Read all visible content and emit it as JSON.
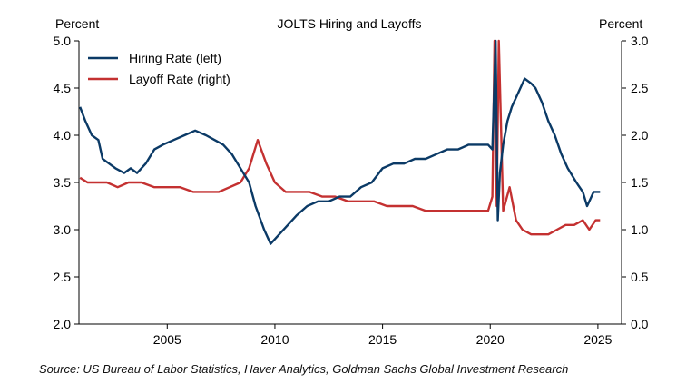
{
  "chart_data": {
    "type": "line",
    "title": "JOLTS Hiring and Layoffs",
    "left_axis_label": "Percent",
    "right_axis_label": "Percent",
    "x_ticks": [
      2005,
      2010,
      2015,
      2020,
      2025
    ],
    "xlim": [
      2000.9,
      2026.1
    ],
    "left_ylim": [
      2.0,
      5.0
    ],
    "right_ylim": [
      0.0,
      3.0
    ],
    "left_ticks": [
      "2.0",
      "2.5",
      "3.0",
      "3.5",
      "4.0",
      "4.5",
      "5.0"
    ],
    "right_ticks": [
      "0.0",
      "0.5",
      "1.0",
      "1.5",
      "2.0",
      "2.5",
      "3.0"
    ],
    "legend_position": "top-left",
    "series": [
      {
        "name": "Hiring Rate (left)",
        "axis": "left",
        "color": "#0b3a66",
        "x": [
          2000.95,
          2001.2,
          2001.5,
          2001.8,
          2002.0,
          2002.3,
          2002.6,
          2003.0,
          2003.3,
          2003.6,
          2004.0,
          2004.4,
          2004.8,
          2005.3,
          2005.8,
          2006.3,
          2006.8,
          2007.2,
          2007.6,
          2008.0,
          2008.4,
          2008.8,
          2009.1,
          2009.5,
          2009.8,
          2010.2,
          2010.6,
          2011.0,
          2011.5,
          2012.0,
          2012.5,
          2013.0,
          2013.5,
          2014.0,
          2014.5,
          2015.0,
          2015.5,
          2016.0,
          2016.5,
          2017.0,
          2017.5,
          2018.0,
          2018.5,
          2019.0,
          2019.5,
          2019.9,
          2020.1,
          2020.25,
          2020.35,
          2020.45,
          2020.6,
          2020.8,
          2021.0,
          2021.3,
          2021.6,
          2021.9,
          2022.1,
          2022.4,
          2022.7,
          2023.0,
          2023.3,
          2023.6,
          2024.0,
          2024.3,
          2024.5,
          2024.8,
          2025.1
        ],
        "values": [
          4.3,
          4.15,
          4.0,
          3.95,
          3.75,
          3.7,
          3.65,
          3.6,
          3.65,
          3.6,
          3.7,
          3.85,
          3.9,
          3.95,
          4.0,
          4.05,
          4.0,
          3.95,
          3.9,
          3.8,
          3.65,
          3.5,
          3.25,
          3.0,
          2.85,
          2.95,
          3.05,
          3.15,
          3.25,
          3.3,
          3.3,
          3.35,
          3.35,
          3.45,
          3.5,
          3.65,
          3.7,
          3.7,
          3.75,
          3.75,
          3.8,
          3.85,
          3.85,
          3.9,
          3.9,
          3.9,
          3.85,
          5.0,
          3.1,
          3.6,
          3.9,
          4.15,
          4.3,
          4.45,
          4.6,
          4.55,
          4.5,
          4.35,
          4.15,
          4.0,
          3.8,
          3.65,
          3.5,
          3.4,
          3.25,
          3.4,
          3.4
        ]
      },
      {
        "name": "Layoff Rate (right)",
        "axis": "right",
        "color": "#c43131",
        "x": [
          2000.95,
          2001.3,
          2001.7,
          2002.2,
          2002.7,
          2003.2,
          2003.8,
          2004.4,
          2005.0,
          2005.6,
          2006.2,
          2006.8,
          2007.4,
          2007.9,
          2008.4,
          2008.8,
          2009.2,
          2009.6,
          2010.0,
          2010.5,
          2011.0,
          2011.6,
          2012.2,
          2012.8,
          2013.4,
          2014.0,
          2014.6,
          2015.2,
          2015.8,
          2016.4,
          2017.0,
          2017.6,
          2018.2,
          2018.8,
          2019.4,
          2019.9,
          2020.1,
          2020.2,
          2020.3,
          2020.4,
          2020.6,
          2020.9,
          2021.2,
          2021.5,
          2021.9,
          2022.3,
          2022.7,
          2023.1,
          2023.5,
          2023.9,
          2024.3,
          2024.6,
          2024.9,
          2025.1
        ],
        "values": [
          1.55,
          1.5,
          1.5,
          1.5,
          1.45,
          1.5,
          1.5,
          1.45,
          1.45,
          1.45,
          1.4,
          1.4,
          1.4,
          1.45,
          1.5,
          1.65,
          1.95,
          1.7,
          1.5,
          1.4,
          1.4,
          1.4,
          1.35,
          1.35,
          1.3,
          1.3,
          1.3,
          1.25,
          1.25,
          1.25,
          1.2,
          1.2,
          1.2,
          1.2,
          1.2,
          1.2,
          1.35,
          3.0,
          1.25,
          3.0,
          1.2,
          1.45,
          1.1,
          1.0,
          0.95,
          0.95,
          0.95,
          1.0,
          1.05,
          1.05,
          1.1,
          1.0,
          1.1,
          1.1
        ]
      }
    ]
  },
  "source_text": "Source: US Bureau of Labor Statistics, Haver Analytics, Goldman Sachs Global Investment Research"
}
